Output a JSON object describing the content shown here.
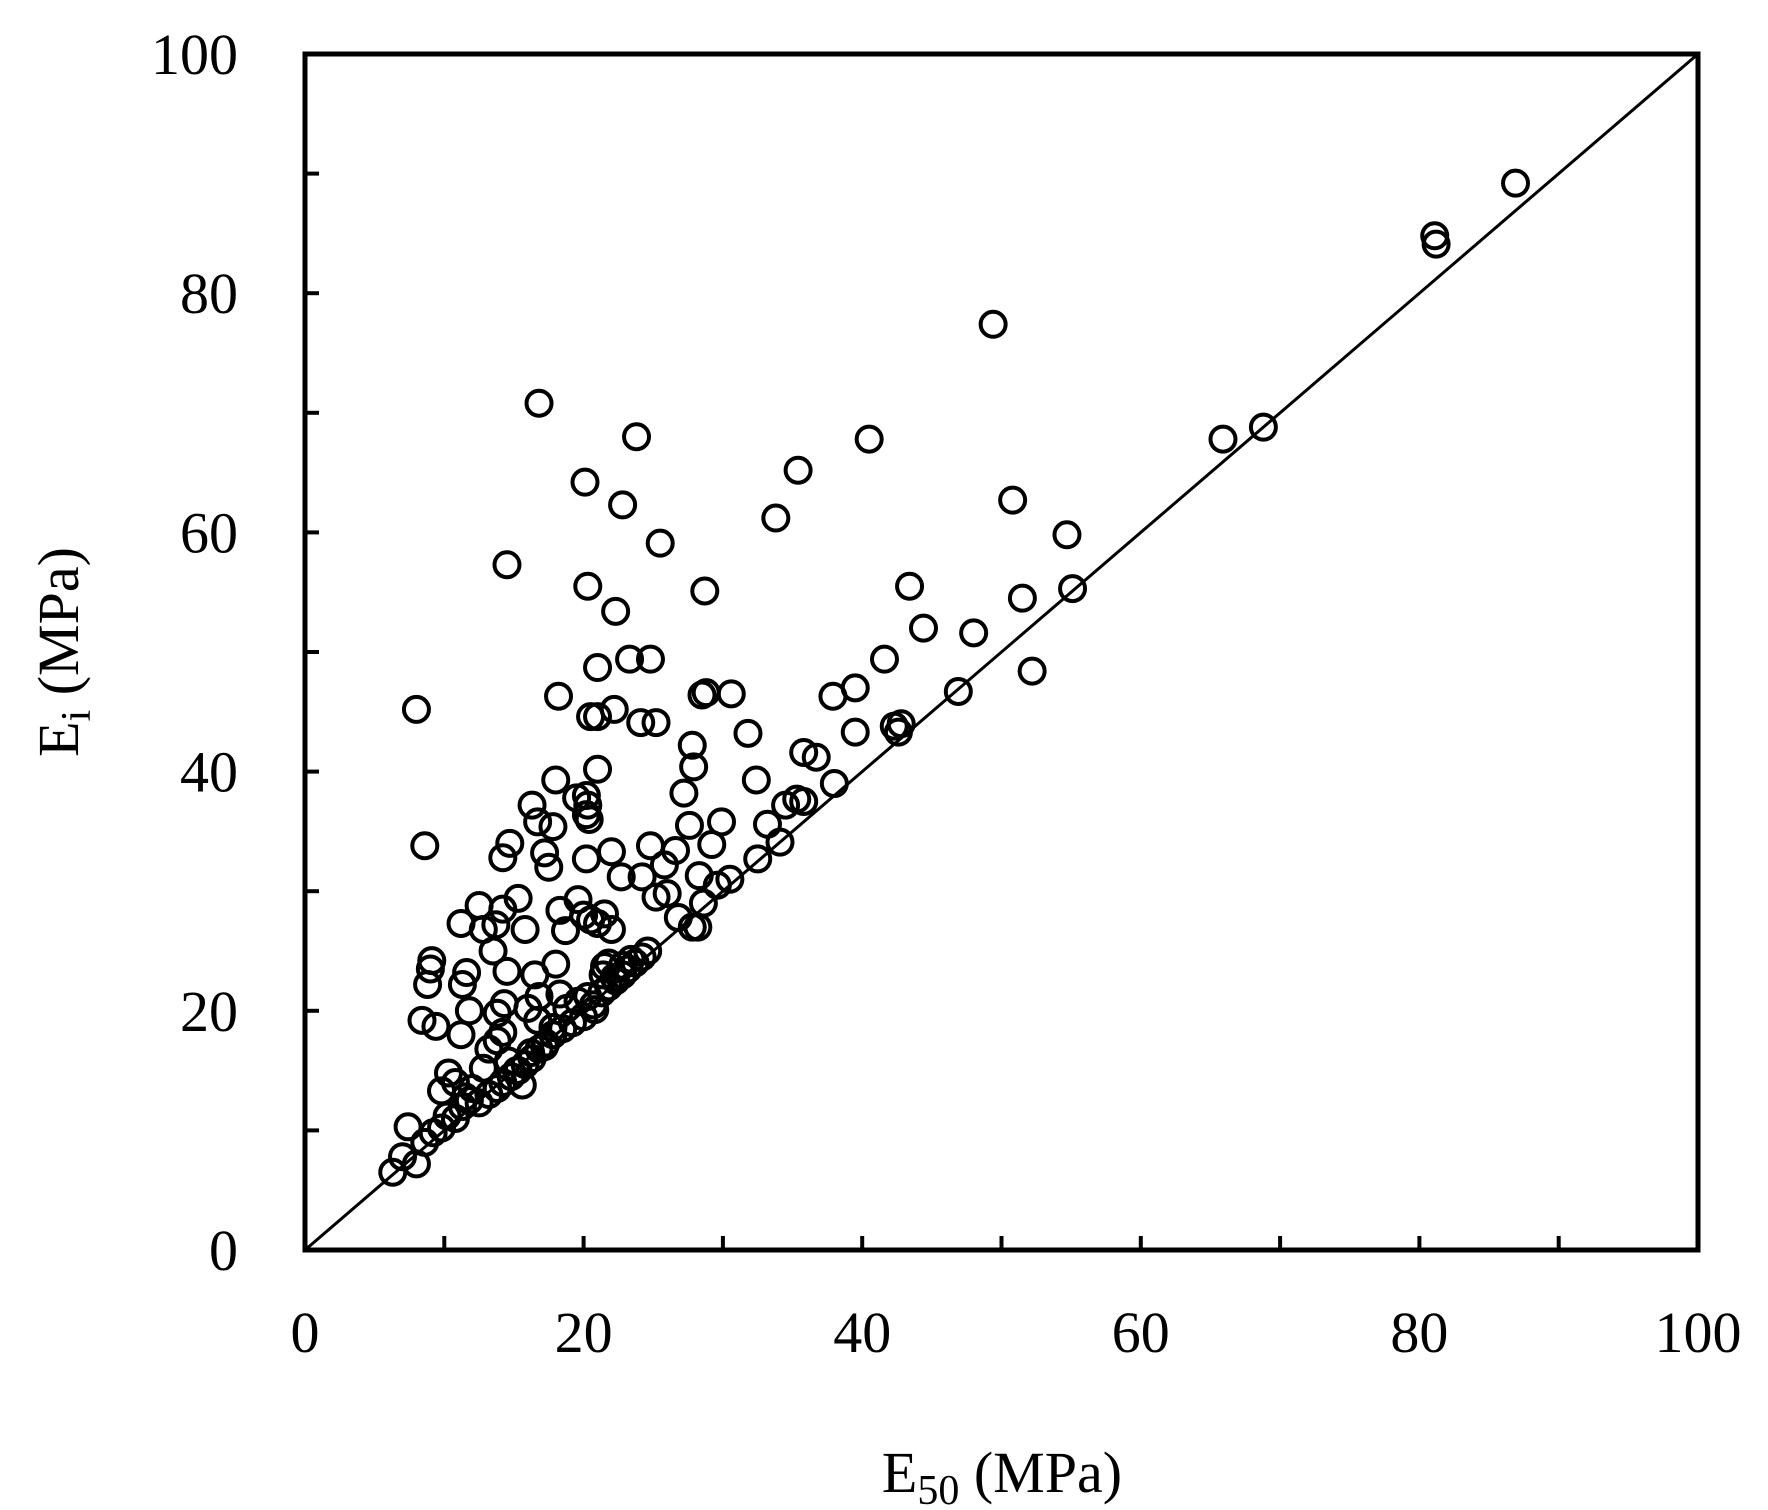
{
  "chart_data": {
    "type": "scatter",
    "title": "",
    "xlabel": {
      "main": "E",
      "sub": "50",
      "unit": " (MPa)"
    },
    "ylabel": {
      "main": "E",
      "sub": "i",
      "unit": " (MPa)"
    },
    "xlim": [
      0,
      100
    ],
    "ylim": [
      0,
      100
    ],
    "xticks": [
      "0",
      "20",
      "40",
      "60",
      "80",
      "100"
    ],
    "yticks": [
      "0",
      "20",
      "40",
      "60",
      "80",
      "100"
    ],
    "grid": false,
    "legend": "none",
    "marker": "open-circle",
    "reference_line": {
      "type": "1:1",
      "from": [
        0,
        0
      ],
      "to": [
        100,
        100
      ]
    },
    "colors": {
      "marker": "#000000",
      "axis": "#000000",
      "background": "#ffffff"
    },
    "series": [
      {
        "points": [
          [
            6.3,
            6.5
          ],
          [
            7.0,
            7.8
          ],
          [
            7.4,
            10.3
          ],
          [
            8.0,
            7.2
          ],
          [
            8.6,
            9.0
          ],
          [
            9.2,
            9.8
          ],
          [
            9.8,
            10.2
          ],
          [
            10.2,
            11.2
          ],
          [
            10.8,
            11.0
          ],
          [
            11.3,
            12.0
          ],
          [
            11.8,
            12.5
          ],
          [
            12.5,
            12.3
          ],
          [
            13.2,
            13.0
          ],
          [
            13.8,
            13.5
          ],
          [
            14.2,
            14.0
          ],
          [
            14.8,
            14.5
          ],
          [
            15.3,
            15.0
          ],
          [
            15.8,
            15.5
          ],
          [
            16.3,
            16.0
          ],
          [
            16.8,
            16.8
          ],
          [
            17.2,
            17.0
          ],
          [
            17.8,
            18.0
          ],
          [
            18.5,
            18.5
          ],
          [
            19.2,
            19.0
          ],
          [
            20.0,
            19.5
          ],
          [
            20.7,
            20.5
          ],
          [
            21.3,
            21.5
          ],
          [
            21.8,
            22.0
          ],
          [
            22.3,
            22.5
          ],
          [
            22.8,
            23.0
          ],
          [
            23.2,
            23.5
          ],
          [
            23.7,
            24.0
          ],
          [
            24.2,
            24.5
          ],
          [
            24.6,
            25.0
          ],
          [
            9.8,
            13.3
          ],
          [
            10.3,
            14.8
          ],
          [
            10.8,
            14.0
          ],
          [
            11.5,
            12.8
          ],
          [
            12.0,
            13.5
          ],
          [
            12.8,
            15.2
          ],
          [
            13.2,
            16.8
          ],
          [
            13.8,
            17.5
          ],
          [
            14.2,
            18.2
          ],
          [
            14.6,
            15.8
          ],
          [
            15.2,
            15.0
          ],
          [
            15.6,
            13.8
          ],
          [
            16.2,
            16.5
          ],
          [
            16.7,
            19.2
          ],
          [
            17.3,
            17.3
          ],
          [
            17.8,
            18.6
          ],
          [
            18.3,
            21.4
          ],
          [
            18.8,
            20.2
          ],
          [
            19.6,
            20.8
          ],
          [
            20.3,
            21.2
          ],
          [
            20.8,
            20.1
          ],
          [
            21.4,
            23.0
          ],
          [
            21.8,
            24.0
          ],
          [
            22.2,
            22.8
          ],
          [
            22.8,
            23.8
          ],
          [
            23.4,
            24.3
          ],
          [
            8.4,
            19.2
          ],
          [
            8.8,
            22.2
          ],
          [
            9.0,
            23.5
          ],
          [
            9.1,
            24.2
          ],
          [
            9.4,
            18.7
          ],
          [
            11.3,
            22.2
          ],
          [
            11.6,
            23.2
          ],
          [
            11.2,
            18.0
          ],
          [
            11.8,
            20.0
          ],
          [
            11.2,
            27.3
          ],
          [
            12.5,
            28.8
          ],
          [
            12.8,
            26.8
          ],
          [
            13.5,
            25.0
          ],
          [
            13.7,
            27.2
          ],
          [
            14.2,
            28.5
          ],
          [
            13.8,
            19.8
          ],
          [
            14.3,
            20.6
          ],
          [
            14.5,
            23.3
          ],
          [
            16.0,
            20.2
          ],
          [
            15.3,
            29.4
          ],
          [
            15.8,
            26.8
          ],
          [
            16.5,
            23.0
          ],
          [
            16.8,
            21.2
          ],
          [
            18.0,
            23.9
          ],
          [
            18.3,
            28.4
          ],
          [
            18.7,
            26.7
          ],
          [
            19.6,
            29.3
          ],
          [
            20.0,
            28.0
          ],
          [
            20.5,
            27.6
          ],
          [
            21.0,
            27.3
          ],
          [
            21.5,
            28.1
          ],
          [
            22.0,
            26.8
          ],
          [
            21.5,
            23.7
          ],
          [
            8.0,
            45.2
          ],
          [
            8.6,
            33.8
          ],
          [
            14.2,
            32.8
          ],
          [
            14.7,
            34.0
          ],
          [
            16.3,
            37.2
          ],
          [
            16.7,
            35.8
          ],
          [
            17.2,
            33.2
          ],
          [
            17.5,
            32.0
          ],
          [
            17.8,
            35.4
          ],
          [
            18.0,
            39.3
          ],
          [
            18.2,
            46.3
          ],
          [
            19.5,
            37.8
          ],
          [
            20.2,
            38.0
          ],
          [
            20.2,
            36.4
          ],
          [
            20.3,
            37.2
          ],
          [
            20.4,
            36.0
          ],
          [
            20.2,
            32.7
          ],
          [
            21.0,
            40.2
          ],
          [
            21.0,
            44.6
          ],
          [
            20.5,
            44.6
          ],
          [
            22.2,
            45.2
          ],
          [
            21.0,
            48.7
          ],
          [
            23.3,
            49.4
          ],
          [
            24.8,
            49.4
          ],
          [
            22.3,
            53.4
          ],
          [
            20.3,
            55.5
          ],
          [
            14.5,
            57.3
          ],
          [
            20.1,
            64.2
          ],
          [
            22.8,
            62.3
          ],
          [
            25.5,
            59.1
          ],
          [
            16.8,
            70.8
          ],
          [
            23.8,
            68.0
          ],
          [
            22.0,
            33.3
          ],
          [
            22.7,
            31.2
          ],
          [
            24.2,
            31.2
          ],
          [
            24.8,
            33.8
          ],
          [
            25.2,
            29.5
          ],
          [
            26.0,
            29.8
          ],
          [
            25.8,
            32.2
          ],
          [
            26.6,
            33.4
          ],
          [
            26.8,
            27.8
          ],
          [
            27.2,
            38.2
          ],
          [
            27.6,
            35.5
          ],
          [
            27.8,
            42.2
          ],
          [
            27.9,
            40.4
          ],
          [
            28.3,
            31.3
          ],
          [
            28.6,
            29.0
          ],
          [
            28.2,
            27.0
          ],
          [
            27.8,
            27.0
          ],
          [
            29.2,
            33.9
          ],
          [
            29.9,
            35.8
          ],
          [
            29.6,
            30.5
          ],
          [
            30.5,
            31.0
          ],
          [
            24.1,
            44.1
          ],
          [
            25.2,
            44.1
          ],
          [
            28.5,
            46.4
          ],
          [
            28.8,
            46.6
          ],
          [
            30.6,
            46.5
          ],
          [
            28.7,
            55.1
          ],
          [
            31.8,
            43.2
          ],
          [
            32.4,
            39.3
          ],
          [
            32.5,
            32.7
          ],
          [
            33.2,
            35.6
          ],
          [
            33.8,
            61.2
          ],
          [
            34.1,
            34.1
          ],
          [
            34.5,
            37.2
          ],
          [
            35.3,
            37.7
          ],
          [
            35.4,
            65.2
          ],
          [
            35.8,
            37.5
          ],
          [
            35.8,
            41.6
          ],
          [
            36.7,
            41.2
          ],
          [
            38.0,
            39.0
          ],
          [
            37.9,
            46.3
          ],
          [
            39.5,
            47.0
          ],
          [
            39.5,
            43.3
          ],
          [
            40.5,
            67.8
          ],
          [
            41.6,
            49.4
          ],
          [
            42.3,
            43.8
          ],
          [
            42.8,
            44.0
          ],
          [
            42.6,
            43.3
          ],
          [
            43.4,
            55.5
          ],
          [
            44.4,
            52.0
          ],
          [
            46.9,
            46.7
          ],
          [
            48.0,
            51.6
          ],
          [
            49.4,
            77.4
          ],
          [
            50.8,
            62.7
          ],
          [
            51.5,
            54.5
          ],
          [
            52.2,
            48.4
          ],
          [
            54.7,
            59.8
          ],
          [
            55.1,
            55.3
          ],
          [
            65.9,
            67.8
          ],
          [
            68.8,
            68.8
          ],
          [
            81.1,
            84.8
          ],
          [
            81.2,
            84.1
          ],
          [
            86.9,
            89.2
          ]
        ]
      }
    ]
  }
}
